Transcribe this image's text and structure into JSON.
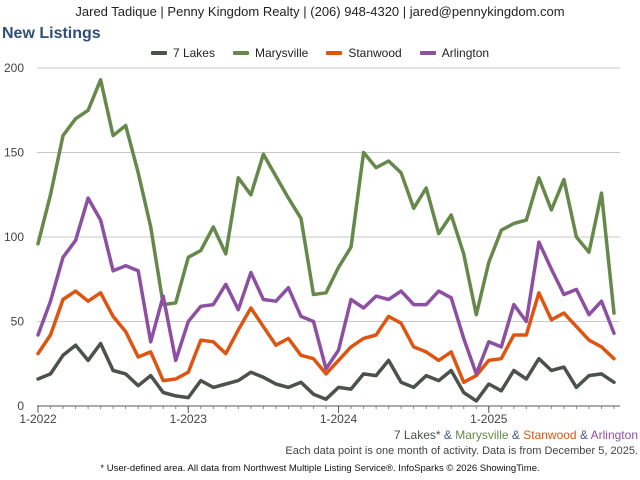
{
  "header": {
    "contact": "Jared Tadique | Penny Kingdom Realty | (206) 948-4320 | jared@pennykingdom.com"
  },
  "chart_data": {
    "type": "line",
    "title": "New Listings",
    "xlabel": "",
    "ylabel": "",
    "ylim": [
      0,
      200
    ],
    "yticks": [
      0,
      50,
      100,
      150,
      200
    ],
    "xticks": [
      {
        "label": "1-2022",
        "index": 0
      },
      {
        "label": "1-2023",
        "index": 12
      },
      {
        "label": "1-2024",
        "index": 24
      },
      {
        "label": "1-2025",
        "index": 36
      }
    ],
    "grid": true,
    "legend_position": "top-center",
    "x": [
      "2022-01",
      "2022-02",
      "2022-03",
      "2022-04",
      "2022-05",
      "2022-06",
      "2022-07",
      "2022-08",
      "2022-09",
      "2022-10",
      "2022-11",
      "2022-12",
      "2023-01",
      "2023-02",
      "2023-03",
      "2023-04",
      "2023-05",
      "2023-06",
      "2023-07",
      "2023-08",
      "2023-09",
      "2023-10",
      "2023-11",
      "2023-12",
      "2024-01",
      "2024-02",
      "2024-03",
      "2024-04",
      "2024-05",
      "2024-06",
      "2024-07",
      "2024-08",
      "2024-09",
      "2024-10",
      "2024-11",
      "2024-12",
      "2025-01",
      "2025-02",
      "2025-03",
      "2025-04",
      "2025-05",
      "2025-06",
      "2025-07",
      "2025-08",
      "2025-09",
      "2025-10",
      "2025-11"
    ],
    "series": [
      {
        "name": "7 Lakes",
        "color": "#4a524b",
        "values": [
          16,
          19,
          30,
          36,
          27,
          37,
          21,
          19,
          12,
          18,
          8,
          6,
          5,
          15,
          11,
          13,
          15,
          20,
          17,
          13,
          11,
          14,
          7,
          4,
          11,
          10,
          19,
          18,
          27,
          14,
          11,
          18,
          15,
          21,
          8,
          3,
          13,
          9,
          21,
          16,
          28,
          21,
          23,
          11,
          18,
          19,
          14
        ]
      },
      {
        "name": "Marysville",
        "color": "#66894b",
        "values": [
          96,
          125,
          160,
          170,
          175,
          193,
          160,
          166,
          138,
          106,
          60,
          61,
          88,
          92,
          106,
          90,
          135,
          125,
          149,
          136,
          123,
          111,
          66,
          67,
          82,
          94,
          150,
          141,
          145,
          138,
          117,
          129,
          102,
          113,
          90,
          54,
          85,
          104,
          108,
          110,
          135,
          116,
          134,
          100,
          91,
          126,
          55
        ]
      },
      {
        "name": "Stanwood",
        "color": "#dd5511",
        "values": [
          31,
          42,
          63,
          68,
          62,
          67,
          53,
          44,
          29,
          32,
          15,
          16,
          20,
          39,
          38,
          31,
          45,
          58,
          47,
          36,
          40,
          30,
          28,
          19,
          27,
          35,
          40,
          42,
          53,
          49,
          35,
          32,
          27,
          32,
          14,
          18,
          27,
          28,
          42,
          42,
          67,
          51,
          55,
          47,
          39,
          35,
          28
        ]
      },
      {
        "name": "Arlington",
        "color": "#8d4fa2",
        "values": [
          42,
          62,
          88,
          98,
          123,
          110,
          80,
          83,
          80,
          38,
          65,
          27,
          50,
          59,
          60,
          72,
          57,
          79,
          63,
          62,
          70,
          53,
          50,
          22,
          33,
          63,
          58,
          65,
          63,
          68,
          60,
          60,
          68,
          64,
          40,
          19,
          38,
          35,
          60,
          50,
          97,
          81,
          66,
          69,
          54,
          62,
          43
        ]
      }
    ]
  },
  "footnote": {
    "series_parts": [
      {
        "text": "7 Lakes*",
        "color": "#4a524b"
      },
      {
        "text": " & ",
        "color": "#4a5a7a"
      },
      {
        "text": "Marysville",
        "color": "#66894b"
      },
      {
        "text": " & ",
        "color": "#4a5a7a"
      },
      {
        "text": "Stanwood",
        "color": "#dd5511"
      },
      {
        "text": " & ",
        "color": "#4a5a7a"
      },
      {
        "text": "Arlington",
        "color": "#8d4fa2"
      }
    ],
    "note": "Each data point is one month of activity. Data is from December 5, 2025."
  },
  "footer": {
    "disclaimer": "* User-defined area. All data from Northwest Multiple Listing Service®. InfoSparks © 2026 ShowingTime."
  }
}
